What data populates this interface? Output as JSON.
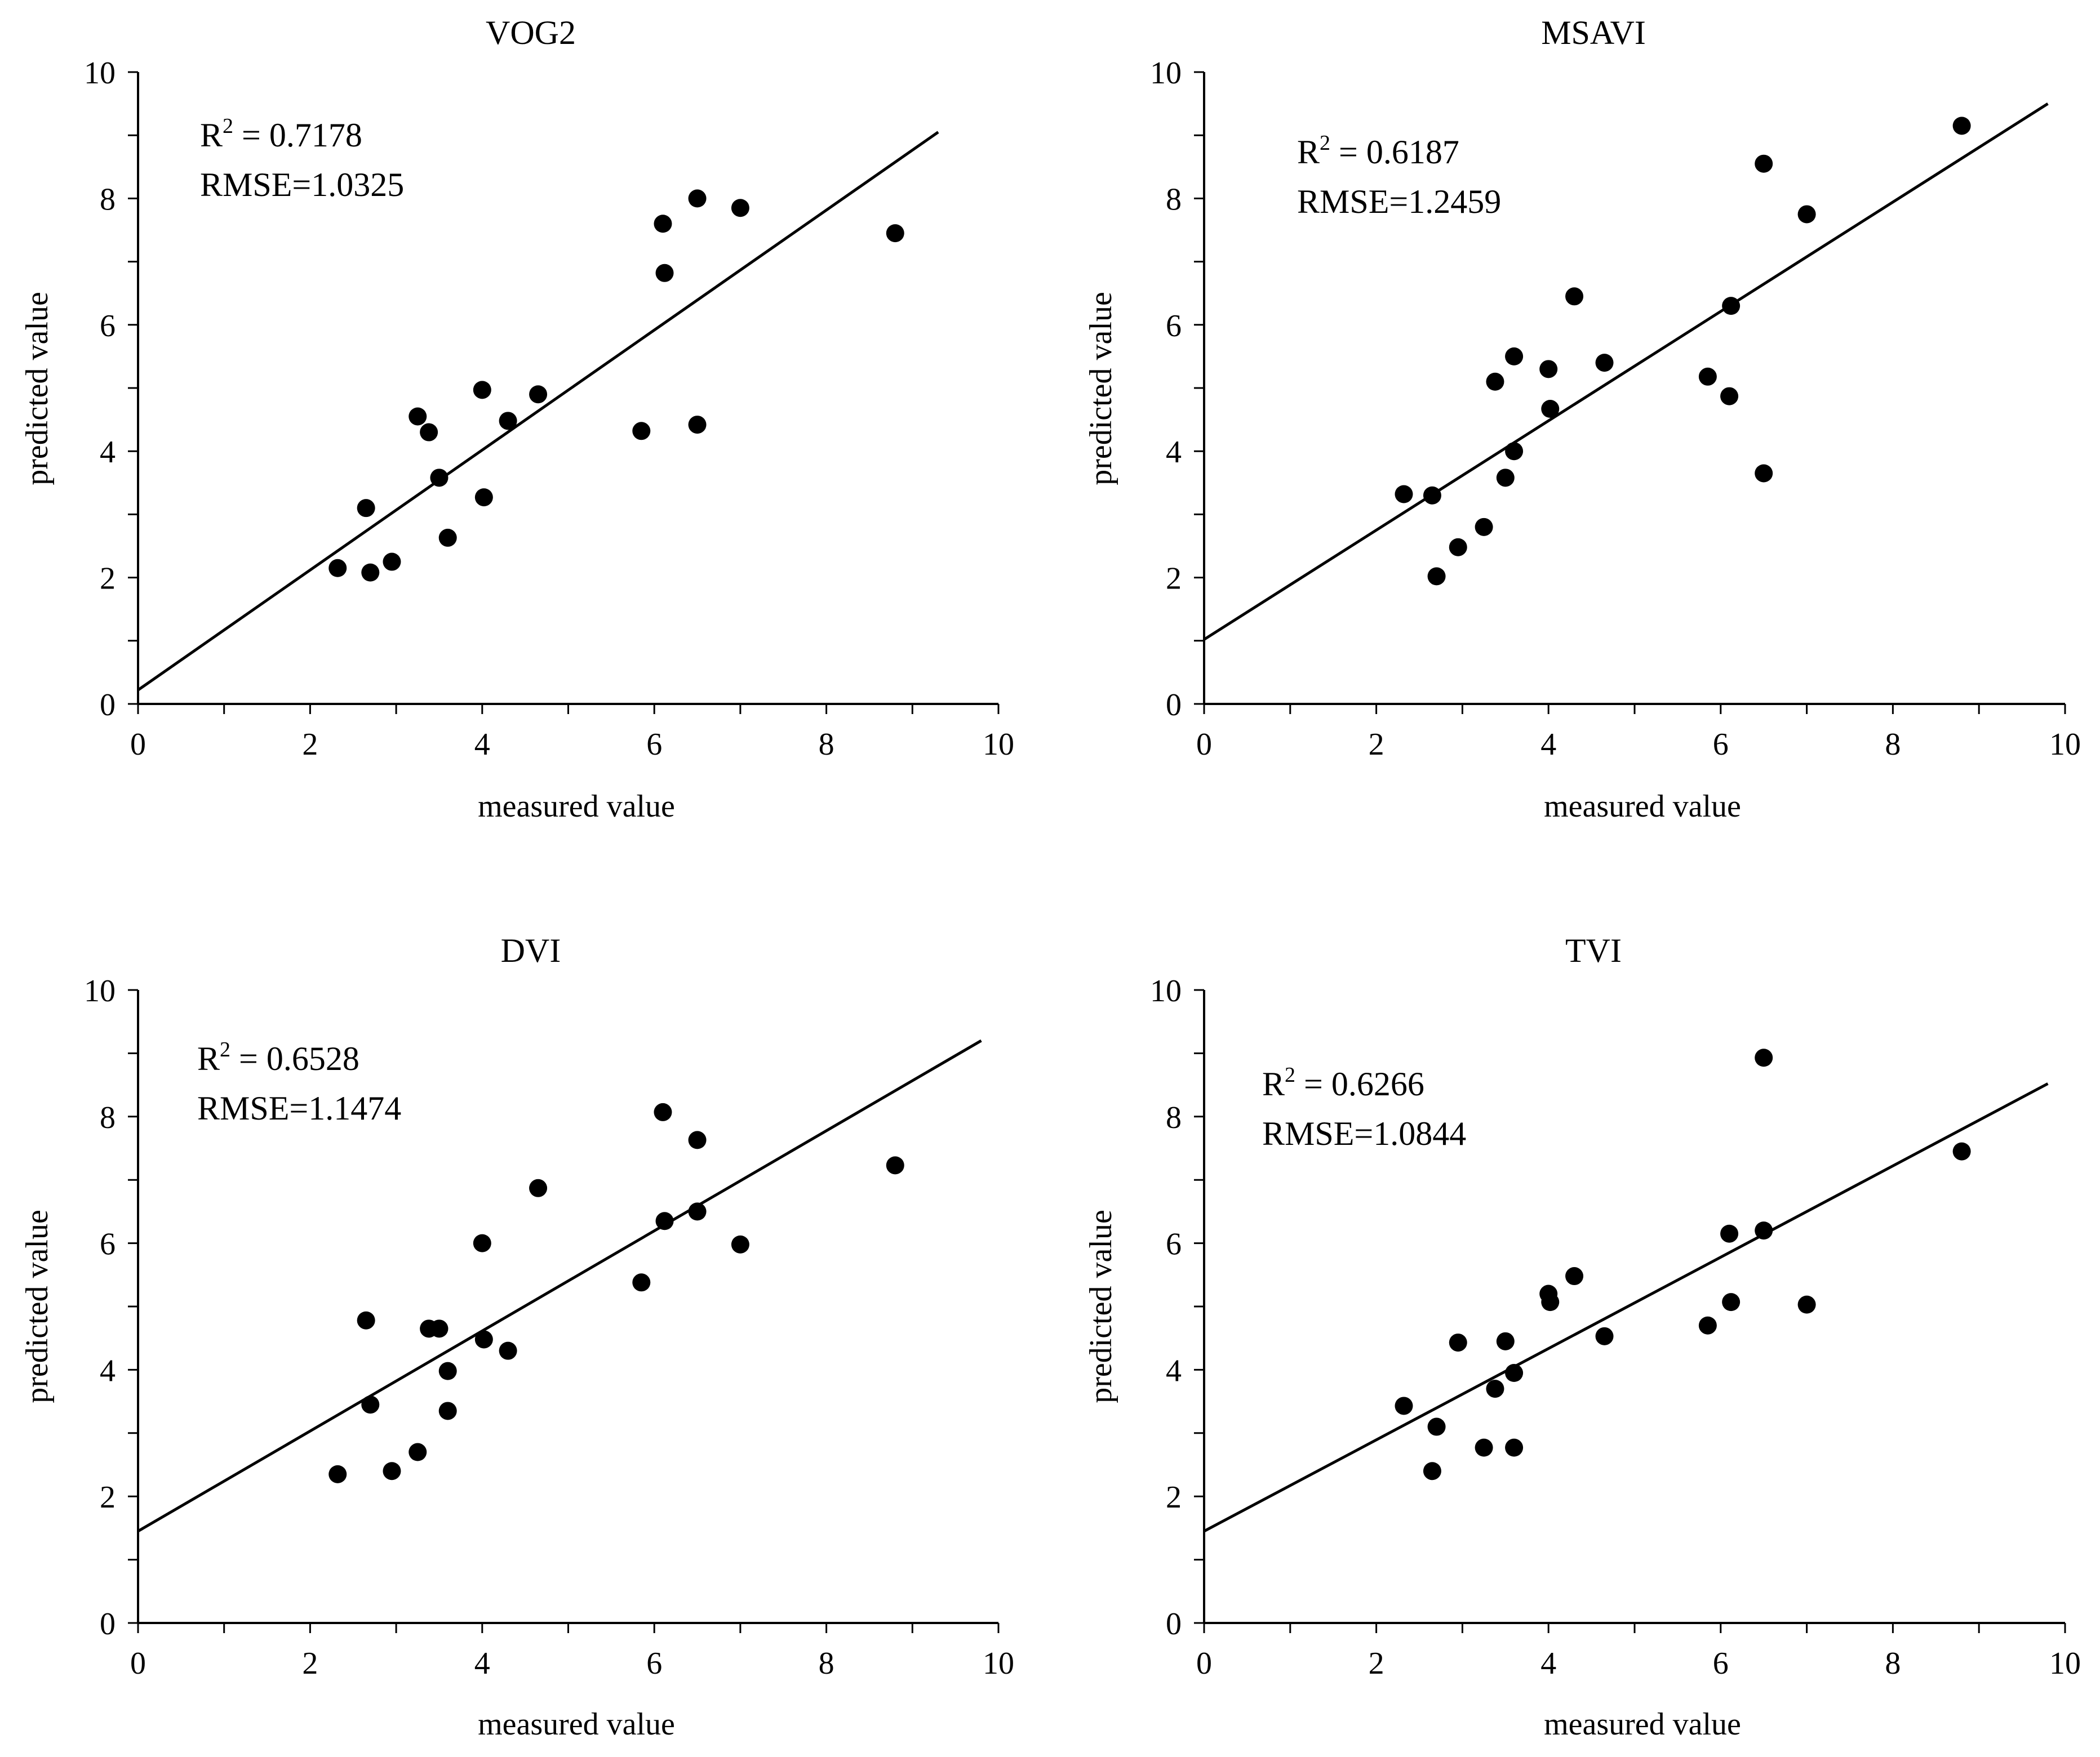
{
  "figure": {
    "colors": {
      "ink": "#000000",
      "background": "#ffffff"
    }
  },
  "chart_data": [
    {
      "type": "scatter",
      "title": "VOG2",
      "xlabel": "measured value",
      "ylabel": "predicted value",
      "xlim": [
        0,
        10
      ],
      "ylim": [
        0,
        10
      ],
      "xticks": [
        "0",
        "2",
        "4",
        "6",
        "8",
        "10"
      ],
      "yticks": [
        "0",
        "2",
        "4",
        "6",
        "8",
        "10"
      ],
      "grid": false,
      "stats": {
        "r2_prefix": "R",
        "r2_sup": "2",
        "r2_value": " = 0.7178",
        "rmse": "RMSE=1.0325"
      },
      "fit_line": {
        "x": [
          0,
          9.3
        ],
        "y": [
          0.22,
          9.05
        ]
      },
      "points": [
        {
          "x": 2.32,
          "y": 2.15
        },
        {
          "x": 2.65,
          "y": 3.1
        },
        {
          "x": 2.7,
          "y": 2.08
        },
        {
          "x": 2.95,
          "y": 2.25
        },
        {
          "x": 3.25,
          "y": 4.55
        },
        {
          "x": 3.38,
          "y": 4.3
        },
        {
          "x": 3.5,
          "y": 3.58
        },
        {
          "x": 3.6,
          "y": 2.63
        },
        {
          "x": 4.0,
          "y": 4.97
        },
        {
          "x": 4.02,
          "y": 3.27
        },
        {
          "x": 4.3,
          "y": 4.48
        },
        {
          "x": 4.65,
          "y": 4.9
        },
        {
          "x": 5.85,
          "y": 4.32
        },
        {
          "x": 6.1,
          "y": 7.6
        },
        {
          "x": 6.12,
          "y": 6.82
        },
        {
          "x": 6.5,
          "y": 8.0
        },
        {
          "x": 6.5,
          "y": 4.42
        },
        {
          "x": 7.0,
          "y": 7.85
        },
        {
          "x": 8.8,
          "y": 7.45
        }
      ]
    },
    {
      "type": "scatter",
      "title": "MSAVI",
      "xlabel": "measured value",
      "ylabel": "predicted value",
      "xlim": [
        0,
        10
      ],
      "ylim": [
        0,
        10
      ],
      "xticks": [
        "0",
        "2",
        "4",
        "6",
        "8",
        "10"
      ],
      "yticks": [
        "0",
        "2",
        "4",
        "6",
        "8",
        "10"
      ],
      "grid": false,
      "stats": {
        "r2_prefix": "R",
        "r2_sup": "2",
        "r2_value": " = 0.6187",
        "rmse": "RMSE=1.2459"
      },
      "fit_line": {
        "x": [
          0,
          9.8
        ],
        "y": [
          1.02,
          9.5
        ]
      },
      "points": [
        {
          "x": 2.32,
          "y": 3.32
        },
        {
          "x": 2.65,
          "y": 3.3
        },
        {
          "x": 2.7,
          "y": 2.02
        },
        {
          "x": 2.95,
          "y": 2.48
        },
        {
          "x": 3.25,
          "y": 2.8
        },
        {
          "x": 3.38,
          "y": 5.1
        },
        {
          "x": 3.5,
          "y": 3.58
        },
        {
          "x": 3.6,
          "y": 5.5
        },
        {
          "x": 3.6,
          "y": 4.0
        },
        {
          "x": 4.0,
          "y": 5.3
        },
        {
          "x": 4.02,
          "y": 4.67
        },
        {
          "x": 4.3,
          "y": 6.45
        },
        {
          "x": 4.65,
          "y": 5.4
        },
        {
          "x": 5.85,
          "y": 5.18
        },
        {
          "x": 6.1,
          "y": 4.87
        },
        {
          "x": 6.12,
          "y": 6.3
        },
        {
          "x": 6.5,
          "y": 8.55
        },
        {
          "x": 6.5,
          "y": 3.65
        },
        {
          "x": 7.0,
          "y": 7.75
        },
        {
          "x": 8.8,
          "y": 9.15
        }
      ]
    },
    {
      "type": "scatter",
      "title": "DVI",
      "xlabel": "measured value",
      "ylabel": "predicted value",
      "xlim": [
        0,
        10
      ],
      "ylim": [
        0,
        10
      ],
      "xticks": [
        "0",
        "2",
        "4",
        "6",
        "8",
        "10"
      ],
      "yticks": [
        "0",
        "2",
        "4",
        "6",
        "8",
        "10"
      ],
      "grid": false,
      "stats": {
        "r2_prefix": "R",
        "r2_sup": "2",
        "r2_value": " = 0.6528",
        "rmse": "RMSE=1.1474"
      },
      "fit_line": {
        "x": [
          0,
          9.8
        ],
        "y": [
          1.45,
          9.2
        ]
      },
      "points": [
        {
          "x": 2.32,
          "y": 2.35
        },
        {
          "x": 2.65,
          "y": 4.78
        },
        {
          "x": 2.7,
          "y": 3.45
        },
        {
          "x": 2.95,
          "y": 2.4
        },
        {
          "x": 3.25,
          "y": 2.7
        },
        {
          "x": 3.38,
          "y": 4.65
        },
        {
          "x": 3.5,
          "y": 4.65
        },
        {
          "x": 3.6,
          "y": 3.98
        },
        {
          "x": 3.6,
          "y": 3.35
        },
        {
          "x": 4.0,
          "y": 6.0
        },
        {
          "x": 4.02,
          "y": 4.48
        },
        {
          "x": 4.3,
          "y": 4.3
        },
        {
          "x": 4.65,
          "y": 6.87
        },
        {
          "x": 5.85,
          "y": 5.38
        },
        {
          "x": 6.1,
          "y": 8.07
        },
        {
          "x": 6.12,
          "y": 6.35
        },
        {
          "x": 6.5,
          "y": 7.63
        },
        {
          "x": 6.5,
          "y": 6.5
        },
        {
          "x": 7.0,
          "y": 5.98
        },
        {
          "x": 8.8,
          "y": 7.23
        }
      ]
    },
    {
      "type": "scatter",
      "title": "TVI",
      "xlabel": "measured value",
      "ylabel": "predicted value",
      "xlim": [
        0,
        10
      ],
      "ylim": [
        0,
        10
      ],
      "xticks": [
        "0",
        "2",
        "4",
        "6",
        "8",
        "10"
      ],
      "yticks": [
        "0",
        "2",
        "4",
        "6",
        "8",
        "10"
      ],
      "grid": false,
      "stats": {
        "r2_prefix": "R",
        "r2_sup": "2",
        "r2_value": " = 0.6266",
        "rmse": "RMSE=1.0844"
      },
      "fit_line": {
        "x": [
          0,
          9.8
        ],
        "y": [
          1.45,
          8.52
        ]
      },
      "points": [
        {
          "x": 2.32,
          "y": 3.43
        },
        {
          "x": 2.65,
          "y": 2.4
        },
        {
          "x": 2.7,
          "y": 3.1
        },
        {
          "x": 2.95,
          "y": 4.43
        },
        {
          "x": 3.25,
          "y": 2.77
        },
        {
          "x": 3.38,
          "y": 3.7
        },
        {
          "x": 3.5,
          "y": 4.45
        },
        {
          "x": 3.6,
          "y": 3.95
        },
        {
          "x": 3.6,
          "y": 2.77
        },
        {
          "x": 4.0,
          "y": 5.2
        },
        {
          "x": 4.02,
          "y": 5.07
        },
        {
          "x": 4.3,
          "y": 5.48
        },
        {
          "x": 4.65,
          "y": 4.53
        },
        {
          "x": 5.85,
          "y": 4.7
        },
        {
          "x": 6.1,
          "y": 6.15
        },
        {
          "x": 6.12,
          "y": 5.07
        },
        {
          "x": 6.5,
          "y": 6.2
        },
        {
          "x": 6.5,
          "y": 8.93
        },
        {
          "x": 7.0,
          "y": 5.03
        },
        {
          "x": 8.8,
          "y": 7.45
        }
      ]
    }
  ]
}
